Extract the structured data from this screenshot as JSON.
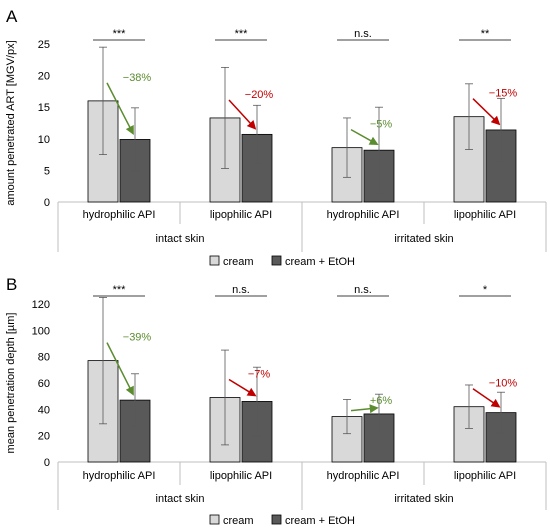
{
  "figure": {
    "panels": [
      {
        "letter": "A"
      },
      {
        "letter": "B"
      }
    ]
  },
  "colors": {
    "cream": "#d9d9d9",
    "cream_etoh": "#595959",
    "decrease_green": "#5b8c2f",
    "decrease_red": "#c00000",
    "increase_green": "#5b8c2f",
    "axis": "#bfbfbf",
    "bar_edge": "#000000"
  },
  "chart_data": [
    {
      "type": "bar",
      "panel": "A",
      "ylabel": "amount penetrated ART [MGV/px]",
      "ylim": [
        0,
        25
      ],
      "yticks": [
        0,
        5,
        10,
        15,
        20,
        25
      ],
      "categories": [
        "hydrophilic API",
        "lipophilic API",
        "hydrophilic API",
        "lipophilic API"
      ],
      "groups": [
        {
          "label": "intact skin",
          "categories": [
            0,
            1
          ]
        },
        {
          "label": "irritated skin",
          "categories": [
            2,
            3
          ]
        }
      ],
      "series": [
        {
          "name": "cream",
          "values": [
            16.0,
            13.3,
            8.6,
            13.5
          ],
          "error": [
            8.5,
            8.0,
            4.7,
            5.2
          ]
        },
        {
          "name": "cream + EtOH",
          "values": [
            9.9,
            10.7,
            8.2,
            11.4
          ],
          "error": [
            5.0,
            4.6,
            6.8,
            5.0
          ]
        }
      ],
      "changes": [
        {
          "label": "−38%",
          "color": "decrease_green"
        },
        {
          "label": "−20%",
          "color": "decrease_red"
        },
        {
          "label": "−5%",
          "color": "decrease_green"
        },
        {
          "label": "−15%",
          "color": "decrease_red"
        }
      ],
      "significance": [
        "***",
        "***",
        "n.s.",
        "**"
      ],
      "legend": {
        "entries": [
          "cream",
          "cream + EtOH"
        ],
        "position": "bottom"
      }
    },
    {
      "type": "bar",
      "panel": "B",
      "ylabel": "mean penetration depth [µm]",
      "ylim": [
        0,
        120
      ],
      "yticks": [
        0,
        20,
        40,
        60,
        80,
        100,
        120
      ],
      "categories": [
        "hydrophilic API",
        "lipophilic API",
        "hydrophilic API",
        "lipophilic API"
      ],
      "groups": [
        {
          "label": "intact skin",
          "categories": [
            0,
            1
          ]
        },
        {
          "label": "irritated skin",
          "categories": [
            2,
            3
          ]
        }
      ],
      "series": [
        {
          "name": "cream",
          "values": [
            77,
            49,
            34.5,
            42
          ],
          "error": [
            48,
            36,
            13,
            16.5
          ]
        },
        {
          "name": "cream + EtOH",
          "values": [
            47,
            46,
            36.5,
            37.5
          ],
          "error": [
            20,
            26,
            15,
            15.5
          ]
        }
      ],
      "changes": [
        {
          "label": "−39%",
          "color": "decrease_green"
        },
        {
          "label": "−7%",
          "color": "decrease_red"
        },
        {
          "label": "+6%",
          "color": "increase_green"
        },
        {
          "label": "−10%",
          "color": "decrease_red"
        }
      ],
      "significance": [
        "***",
        "n.s.",
        "n.s.",
        "*"
      ],
      "legend": {
        "entries": [
          "cream",
          "cream + EtOH"
        ],
        "position": "bottom"
      }
    }
  ]
}
